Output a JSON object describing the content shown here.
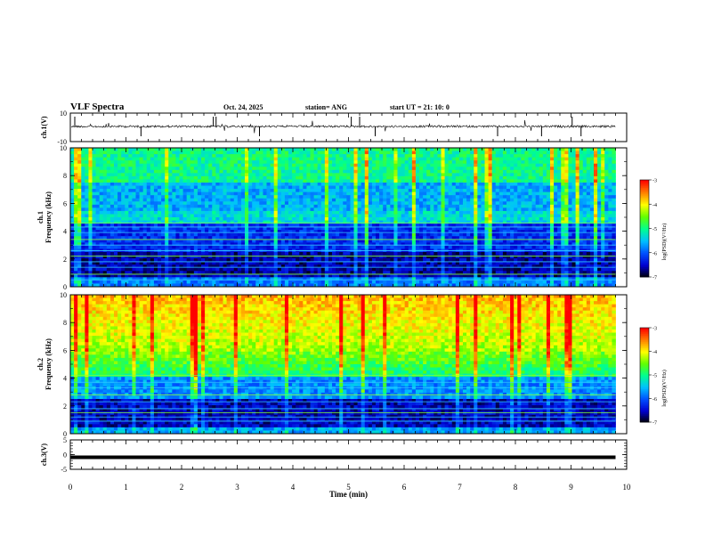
{
  "header": {
    "title": "VLF Spectra",
    "date": "Oct. 24, 2025",
    "station": "station= ANG",
    "start": "start  UT =   21: 10: 0"
  },
  "colorbar": {
    "label": "log(PSD)(V²/Hz)",
    "ticks": [
      "-3",
      "-4",
      "-5",
      "-6",
      "-7"
    ],
    "colors": [
      "#000000",
      "#0000d0",
      "#0050ff",
      "#00c0ff",
      "#00ff90",
      "#60ff00",
      "#ffff00",
      "#ff8000",
      "#ff0000",
      "#ffffff"
    ]
  },
  "chart_data": [
    {
      "type": "line",
      "panel": "waveform-ch1",
      "ylabel": "ch.1(V)",
      "ylim": [
        -10,
        10
      ],
      "yticks": [
        "10",
        "-10"
      ],
      "x": [
        0,
        10
      ],
      "baseline_value": 0
    },
    {
      "type": "heatmap",
      "panel": "spectrogram-ch1",
      "ylabel": "ch.1\nFrequency (kHz)",
      "ylim": [
        0,
        10
      ],
      "yticks": [
        "0",
        "2",
        "4",
        "6",
        "8",
        "10"
      ],
      "xlim": [
        0,
        10
      ],
      "clim": [
        -7,
        -3
      ],
      "data_end_min": 9.8
    },
    {
      "type": "heatmap",
      "panel": "spectrogram-ch2",
      "ylabel": "ch.2\nFrequency (kHz)",
      "ylim": [
        0,
        10
      ],
      "yticks": [
        "0",
        "2",
        "4",
        "6",
        "8",
        "10"
      ],
      "xlim": [
        0,
        10
      ],
      "clim": [
        -7,
        -3
      ],
      "data_end_min": 9.8
    },
    {
      "type": "line",
      "panel": "waveform-ch3",
      "ylabel": "ch.3(V)",
      "ylim": [
        -5,
        5
      ],
      "yticks": [
        "5",
        "0",
        "-5"
      ],
      "xlim": [
        0,
        10
      ],
      "value": -0.9,
      "data_end_min": 9.8
    }
  ],
  "xaxis": {
    "label": "Time (min)",
    "ticks": [
      "0",
      "1",
      "2",
      "3",
      "4",
      "5",
      "6",
      "7",
      "8",
      "9",
      "10"
    ]
  }
}
